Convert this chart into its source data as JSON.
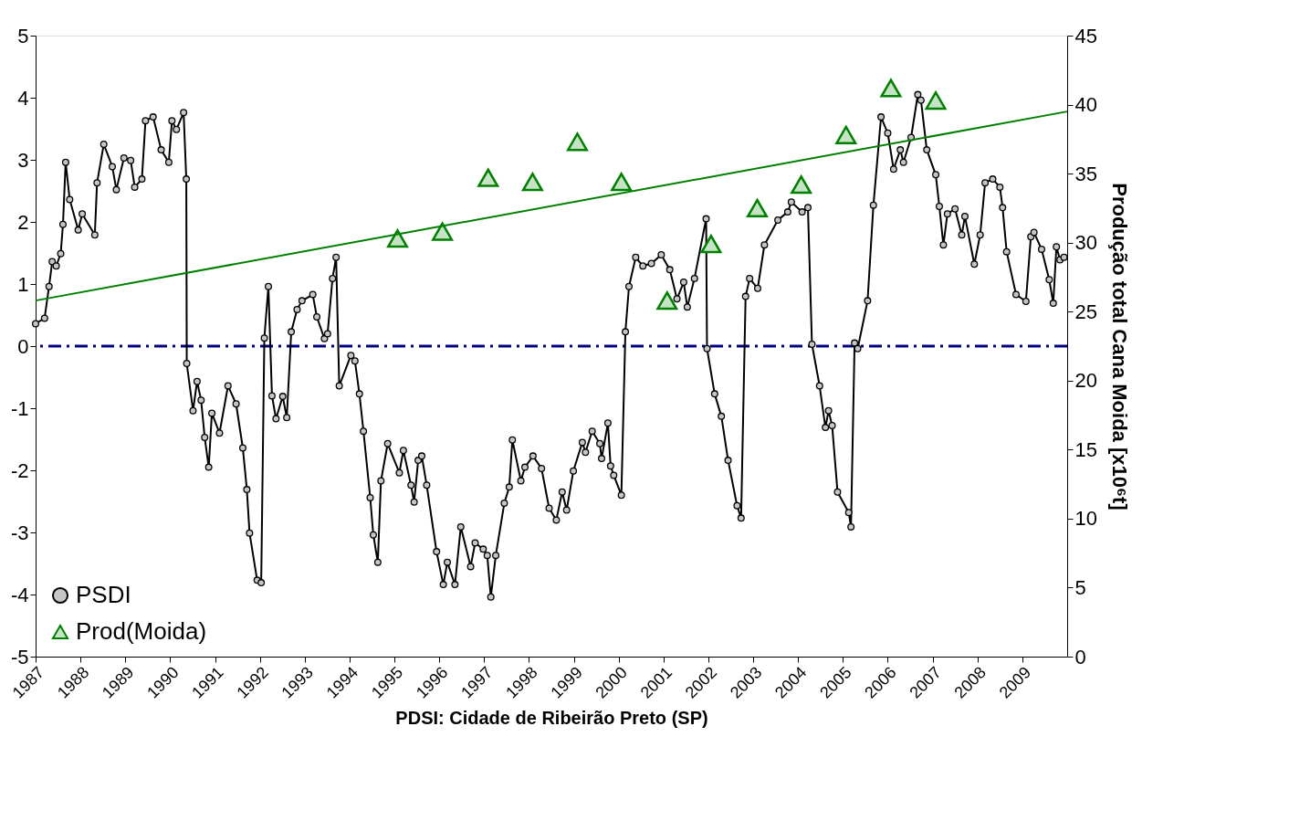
{
  "chart_data": {
    "type": "line",
    "xlabel": "PDSI: Cidade de Ribeirão Preto (SP)",
    "y2label": "Produção total Cana Moida [x10⁶t]",
    "xlim": [
      1987,
      2010
    ],
    "xticks": [
      1987,
      1988,
      1989,
      1990,
      1991,
      1992,
      1993,
      1994,
      1995,
      1996,
      1997,
      1998,
      1999,
      2000,
      2001,
      2002,
      2003,
      2004,
      2005,
      2006,
      2007,
      2008,
      2009
    ],
    "ylim": [
      -5,
      5
    ],
    "yticks": [
      -5,
      -4,
      -3,
      -2,
      -1,
      0,
      1,
      2,
      3,
      4,
      5
    ],
    "y2lim": [
      0,
      45
    ],
    "y2ticks": [
      0,
      5,
      10,
      15,
      20,
      25,
      30,
      35,
      40,
      45
    ],
    "grid": false,
    "legend": "bottom left",
    "ref_lines": [
      {
        "axis": "y",
        "value": 0,
        "color": "#000080",
        "line_style": "dashed"
      }
    ],
    "series": [
      {
        "name": "PSDI",
        "marker": "circle",
        "color": "#000000",
        "x": [
          1987.0,
          1987.2,
          1987.3,
          1987.37,
          1987.46,
          1987.56,
          1987.61,
          1987.67,
          1987.76,
          1987.95,
          1988.04,
          1988.32,
          1988.37,
          1988.52,
          1988.71,
          1988.8,
          1988.97,
          1989.12,
          1989.21,
          1989.37,
          1989.45,
          1989.62,
          1989.8,
          1989.97,
          1990.04,
          1990.14,
          1990.3,
          1990.36,
          1990.37,
          1990.51,
          1990.6,
          1990.69,
          1990.77,
          1990.86,
          1990.93,
          1991.1,
          1991.29,
          1991.47,
          1991.62,
          1991.71,
          1991.77,
          1991.94,
          1992.03,
          1992.1,
          1992.19,
          1992.27,
          1992.36,
          1992.51,
          1992.6,
          1992.7,
          1992.83,
          1992.94,
          1993.18,
          1993.27,
          1993.44,
          1993.51,
          1993.62,
          1993.7,
          1993.77,
          1994.03,
          1994.12,
          1994.22,
          1994.31,
          1994.46,
          1994.53,
          1994.63,
          1994.7,
          1994.85,
          1995.11,
          1995.2,
          1995.37,
          1995.44,
          1995.53,
          1995.61,
          1995.72,
          1995.94,
          1996.09,
          1996.18,
          1996.35,
          1996.48,
          1996.7,
          1996.8,
          1996.98,
          1997.07,
          1997.15,
          1997.26,
          1997.45,
          1997.56,
          1997.63,
          1997.82,
          1997.91,
          1998.09,
          1998.28,
          1998.45,
          1998.61,
          1998.74,
          1998.84,
          1998.99,
          1999.19,
          1999.26,
          1999.41,
          1999.58,
          1999.62,
          1999.76,
          1999.82,
          1999.89,
          2000.06,
          2000.15,
          2000.23,
          2000.38,
          2000.54,
          2000.73,
          2000.95,
          2001.14,
          2001.3,
          2001.45,
          2001.53,
          2001.69,
          2001.95,
          2001.97,
          2002.14,
          2002.29,
          2002.44,
          2002.64,
          2002.73,
          2002.83,
          2002.92,
          2003.1,
          2003.25,
          2003.55,
          2003.77,
          2003.85,
          2004.09,
          2004.22,
          2004.31,
          2004.48,
          2004.61,
          2004.68,
          2004.76,
          2004.88,
          2005.13,
          2005.18,
          2005.26,
          2005.33,
          2005.55,
          2005.68,
          2005.85,
          2006.0,
          2006.13,
          2006.28,
          2006.35,
          2006.52,
          2006.67,
          2006.74,
          2006.87,
          2007.07,
          2007.15,
          2007.24,
          2007.33,
          2007.5,
          2007.65,
          2007.72,
          2007.93,
          2008.06,
          2008.17,
          2008.34,
          2008.5,
          2008.56,
          2008.65,
          2008.86,
          2009.08,
          2009.19,
          2009.26,
          2009.43,
          2009.6,
          2009.69,
          2009.76,
          2009.84,
          2009.93
        ],
        "values": [
          0.36,
          0.45,
          0.96,
          1.36,
          1.29,
          1.49,
          1.96,
          2.96,
          2.36,
          1.87,
          2.13,
          1.79,
          2.63,
          3.25,
          2.89,
          2.52,
          3.03,
          2.99,
          2.56,
          2.69,
          3.63,
          3.69,
          3.16,
          2.96,
          3.63,
          3.49,
          3.76,
          2.69,
          -0.28,
          -1.04,
          -0.57,
          -0.87,
          -1.47,
          -1.95,
          -1.08,
          -1.4,
          -0.64,
          -0.93,
          -1.64,
          -2.31,
          -3.01,
          -3.77,
          -3.81,
          0.13,
          0.96,
          -0.8,
          -1.17,
          -0.81,
          -1.15,
          0.23,
          0.59,
          0.73,
          0.83,
          0.47,
          0.12,
          0.2,
          1.09,
          1.43,
          -0.64,
          -0.15,
          -0.24,
          -0.77,
          -1.37,
          -2.44,
          -3.04,
          -3.48,
          -2.17,
          -1.57,
          -2.04,
          -1.68,
          -2.24,
          -2.51,
          -1.84,
          -1.77,
          -2.24,
          -3.31,
          -3.84,
          -3.48,
          -3.84,
          -2.91,
          -3.55,
          -3.17,
          -3.27,
          -3.37,
          -4.04,
          -3.37,
          -2.53,
          -2.27,
          -1.51,
          -2.17,
          -1.95,
          -1.77,
          -1.97,
          -2.61,
          -2.8,
          -2.35,
          -2.64,
          -2.01,
          -1.55,
          -1.71,
          -1.37,
          -1.57,
          -1.81,
          -1.24,
          -1.93,
          -2.08,
          -2.4,
          0.23,
          0.96,
          1.43,
          1.29,
          1.33,
          1.47,
          1.23,
          0.76,
          1.03,
          0.63,
          1.09,
          2.05,
          -0.04,
          -0.77,
          -1.13,
          -1.84,
          -2.57,
          -2.77,
          0.8,
          1.09,
          0.93,
          1.63,
          2.03,
          2.16,
          2.32,
          2.16,
          2.23,
          0.03,
          -0.64,
          -1.31,
          -1.04,
          -1.28,
          -2.35,
          -2.68,
          -2.91,
          0.05,
          -0.04,
          0.73,
          2.27,
          3.69,
          3.43,
          2.85,
          3.16,
          2.96,
          3.36,
          4.05,
          3.96,
          3.16,
          2.76,
          2.25,
          1.63,
          2.13,
          2.21,
          1.79,
          2.09,
          1.32,
          1.79,
          2.63,
          2.69,
          2.56,
          2.23,
          1.52,
          0.83,
          0.72,
          1.76,
          1.83,
          1.56,
          1.07,
          0.69,
          1.6,
          1.39,
          1.43
        ]
      },
      {
        "name": "Prod(Moida)",
        "type": "scatter",
        "marker": "triangle",
        "axis": "y2",
        "color": "#008000",
        "x": [
          1995.07,
          1996.07,
          1997.09,
          1998.08,
          1999.08,
          2000.06,
          2001.08,
          2002.06,
          2003.09,
          2004.07,
          2005.07,
          2006.07,
          2007.07
        ],
        "values": [
          30.3,
          30.8,
          34.7,
          34.4,
          37.3,
          34.4,
          25.8,
          29.9,
          32.5,
          34.2,
          37.8,
          41.2,
          40.3
        ]
      },
      {
        "marker": "none",
        "axis": "y2",
        "color": "#008000",
        "x": [
          1987,
          2010
        ],
        "values": [
          25.8,
          39.5
        ]
      }
    ]
  }
}
